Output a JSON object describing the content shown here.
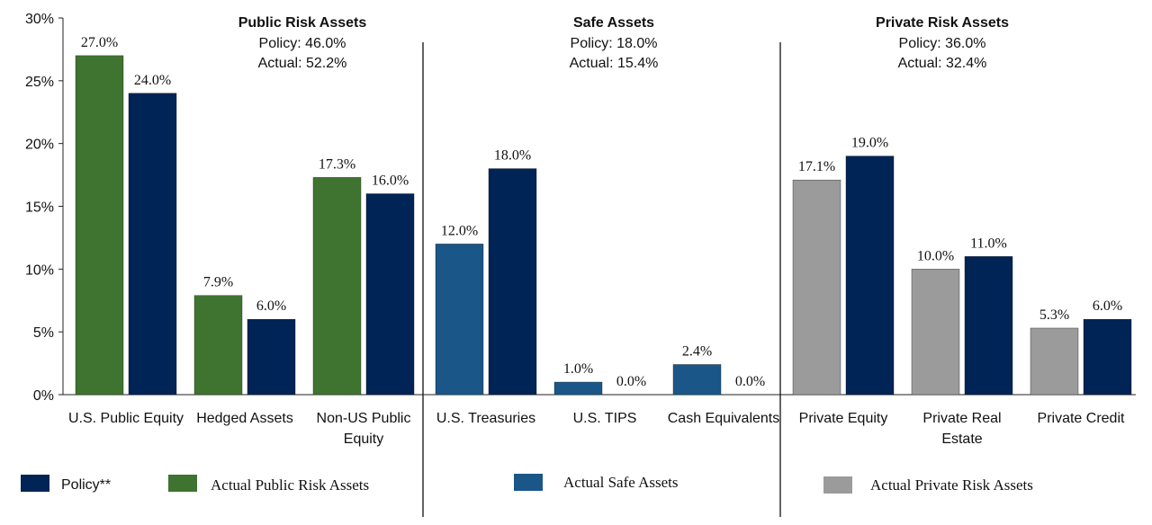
{
  "chart_data": {
    "type": "bar",
    "ylim": [
      0,
      30
    ],
    "yticks": [
      "0%",
      "5%",
      "10%",
      "15%",
      "20%",
      "25%",
      "30%"
    ],
    "grid": false,
    "groups": [
      {
        "title": "Public Risk Assets",
        "policy_line": "Policy:  46.0%",
        "actual_line": "Actual:  52.2%",
        "actual_color": "#3f7330",
        "categories": [
          {
            "label": [
              "U.S. Public Equity"
            ],
            "actual": 27.0,
            "policy": 24.0,
            "actual_label": "27.0%",
            "policy_label": "24.0%"
          },
          {
            "label": [
              "Hedged Assets"
            ],
            "actual": 7.9,
            "policy": 6.0,
            "actual_label": "7.9%",
            "policy_label": "6.0%"
          },
          {
            "label": [
              "Non-US Public",
              "Equity"
            ],
            "actual": 17.3,
            "policy": 16.0,
            "actual_label": "17.3%",
            "policy_label": "16.0%"
          }
        ]
      },
      {
        "title": "Safe Assets",
        "policy_line": "Policy:  18.0%",
        "actual_line": "Actual:  15.4%",
        "actual_color": "#1a5688",
        "categories": [
          {
            "label": [
              "U.S. Treasuries"
            ],
            "actual": 12.0,
            "policy": 18.0,
            "actual_label": "12.0%",
            "policy_label": "18.0%"
          },
          {
            "label": [
              "U.S. TIPS"
            ],
            "actual": 1.0,
            "policy": 0.0,
            "actual_label": "1.0%",
            "policy_label": "0.0%"
          },
          {
            "label": [
              "Cash Equivalents"
            ],
            "actual": 2.4,
            "policy": 0.0,
            "actual_label": "2.4%",
            "policy_label": "0.0%"
          }
        ]
      },
      {
        "title": "Private Risk Assets",
        "policy_line": "Policy:  36.0%",
        "actual_line": "Actual:  32.4%",
        "actual_color": "#9b9b9b",
        "categories": [
          {
            "label": [
              "Private Equity"
            ],
            "actual": 17.1,
            "policy": 19.0,
            "actual_label": "17.1%",
            "policy_label": "19.0%"
          },
          {
            "label": [
              "Private Real",
              "Estate"
            ],
            "actual": 10.0,
            "policy": 11.0,
            "actual_label": "10.0%",
            "policy_label": "11.0%"
          },
          {
            "label": [
              "Private Credit"
            ],
            "actual": 5.3,
            "policy": 6.0,
            "actual_label": "5.3%",
            "policy_label": "6.0%"
          }
        ]
      }
    ],
    "policy_color": "#002455",
    "legend": [
      {
        "label": "Policy**",
        "color": "#002455",
        "style": "sans"
      },
      {
        "label": "Actual Public Risk Assets",
        "color": "#3f7330",
        "style": "serif"
      },
      {
        "label": "Actual Safe Assets",
        "color": "#1a5688",
        "style": "serif"
      },
      {
        "label": "Actual Private Risk Assets",
        "color": "#9b9b9b",
        "style": "serif"
      }
    ],
    "legend_placement": "bottom"
  }
}
